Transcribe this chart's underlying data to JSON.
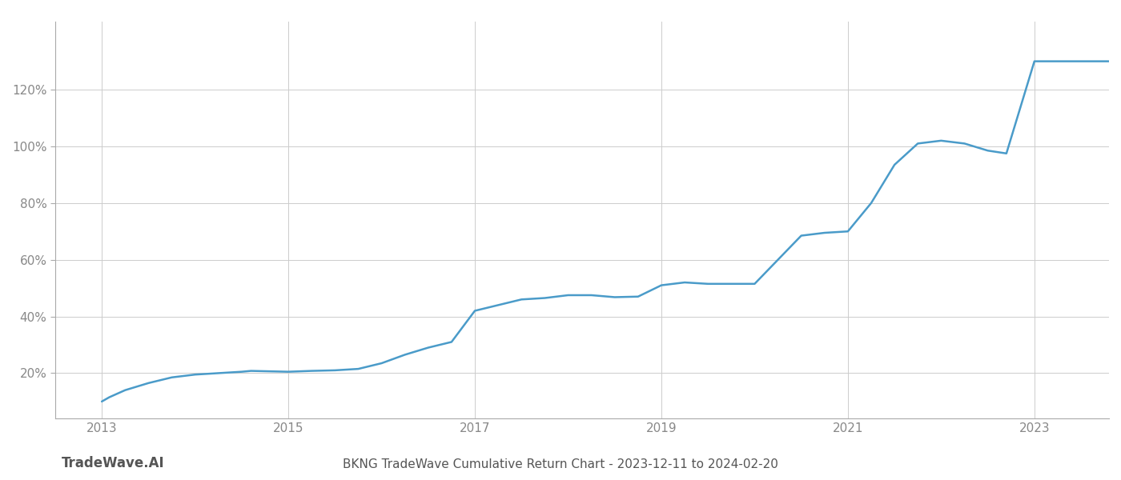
{
  "title": "BKNG TradeWave Cumulative Return Chart - 2023-12-11 to 2024-02-20",
  "watermark": "TradeWave.AI",
  "line_color": "#4a9bc9",
  "line_width": 1.8,
  "background_color": "#ffffff",
  "grid_color": "#cccccc",
  "x_years": [
    2013,
    2015,
    2017,
    2019,
    2021,
    2023
  ],
  "yticks": [
    0.2,
    0.4,
    0.6,
    0.8,
    1.0,
    1.2
  ],
  "ytick_labels": [
    "20%",
    "40%",
    "60%",
    "80%",
    "100%",
    "120%"
  ],
  "xlim": [
    2012.5,
    2023.8
  ],
  "ylim": [
    0.04,
    1.44
  ],
  "data_x": [
    2013.0,
    2013.08,
    2013.25,
    2013.5,
    2013.75,
    2014.0,
    2014.25,
    2014.5,
    2014.6,
    2015.0,
    2015.25,
    2015.5,
    2015.75,
    2016.0,
    2016.25,
    2016.5,
    2016.75,
    2017.0,
    2017.25,
    2017.5,
    2017.75,
    2018.0,
    2018.25,
    2018.5,
    2018.75,
    2019.0,
    2019.25,
    2019.5,
    2019.75,
    2020.0,
    2020.25,
    2020.5,
    2020.75,
    2021.0,
    2021.25,
    2021.5,
    2021.75,
    2022.0,
    2022.25,
    2022.5,
    2022.7,
    2023.0,
    2023.8
  ],
  "data_y": [
    0.1,
    0.115,
    0.14,
    0.165,
    0.185,
    0.195,
    0.2,
    0.205,
    0.208,
    0.205,
    0.208,
    0.21,
    0.215,
    0.235,
    0.265,
    0.29,
    0.31,
    0.42,
    0.44,
    0.46,
    0.465,
    0.475,
    0.475,
    0.468,
    0.47,
    0.51,
    0.52,
    0.515,
    0.515,
    0.515,
    0.6,
    0.685,
    0.695,
    0.7,
    0.8,
    0.935,
    1.01,
    1.02,
    1.01,
    0.985,
    0.975,
    1.3,
    1.3
  ],
  "title_fontsize": 11,
  "tick_fontsize": 11,
  "watermark_fontsize": 12
}
